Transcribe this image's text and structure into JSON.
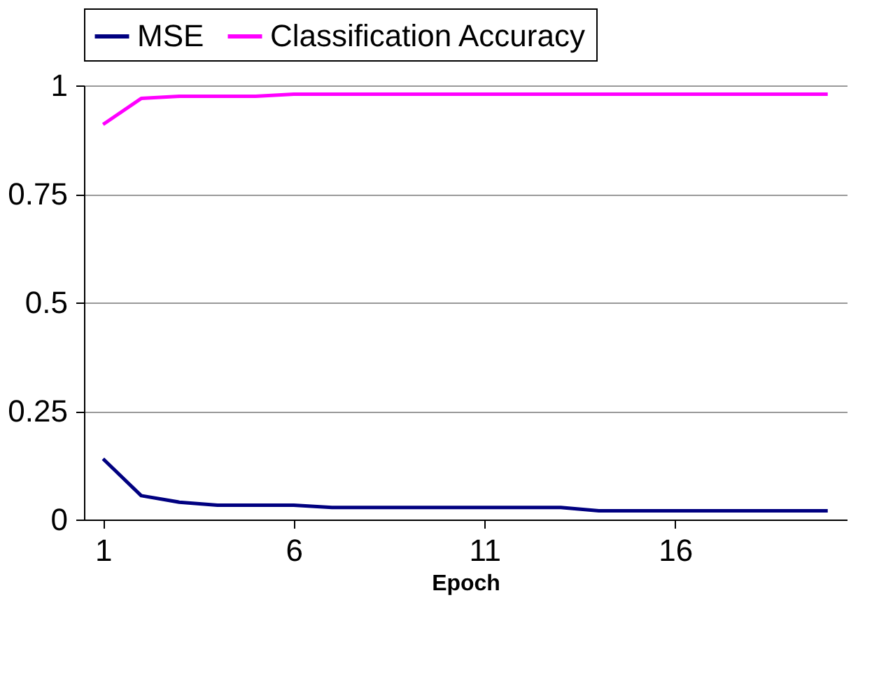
{
  "chart_data": {
    "type": "line",
    "xlabel": "Epoch",
    "x": [
      1,
      2,
      3,
      4,
      5,
      6,
      7,
      8,
      9,
      10,
      11,
      12,
      13,
      14,
      15,
      16,
      17,
      18,
      19,
      20
    ],
    "series": [
      {
        "name": "MSE",
        "color": "#000080",
        "values": [
          0.14,
          0.055,
          0.04,
          0.033,
          0.033,
          0.033,
          0.028,
          0.028,
          0.028,
          0.028,
          0.028,
          0.028,
          0.028,
          0.02,
          0.02,
          0.02,
          0.02,
          0.02,
          0.02,
          0.02
        ]
      },
      {
        "name": "Classification Accuracy",
        "color": "#ff00ff",
        "values": [
          0.91,
          0.97,
          0.975,
          0.975,
          0.975,
          0.98,
          0.98,
          0.98,
          0.98,
          0.98,
          0.98,
          0.98,
          0.98,
          0.98,
          0.98,
          0.98,
          0.98,
          0.98,
          0.98,
          0.98
        ]
      }
    ],
    "xlim": [
      0.5,
      20.5
    ],
    "xticks": [
      1,
      6,
      11,
      16
    ],
    "ylim": [
      0,
      1
    ],
    "yticks": [
      0,
      0.25,
      0.5,
      0.75,
      1
    ],
    "grid": "y",
    "legend": "top",
    "marker": "none",
    "line_style": "solid"
  }
}
